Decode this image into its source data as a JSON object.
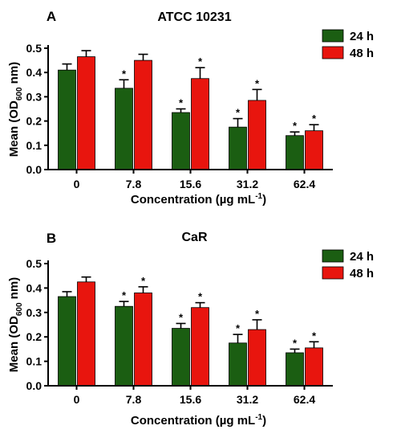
{
  "chart_data": [
    {
      "panel_letter": "A",
      "title": "ATCC 10231",
      "type": "bar",
      "categories": [
        "0",
        "7.8",
        "15.6",
        "31.2",
        "62.4"
      ],
      "series": [
        {
          "name": "24 h",
          "color": "#1b5e12",
          "values": [
            0.41,
            0.335,
            0.235,
            0.175,
            0.14
          ],
          "errors": [
            0.025,
            0.035,
            0.015,
            0.035,
            0.015
          ],
          "significant": [
            false,
            true,
            true,
            true,
            true
          ]
        },
        {
          "name": "48 h",
          "color": "#e8150e",
          "values": [
            0.465,
            0.45,
            0.375,
            0.285,
            0.16
          ],
          "errors": [
            0.025,
            0.025,
            0.045,
            0.045,
            0.025
          ],
          "significant": [
            false,
            false,
            true,
            true,
            true
          ]
        }
      ],
      "significance_marker": "*",
      "ylim": [
        0,
        0.5
      ],
      "yticks": [
        "0.0",
        "0.1",
        "0.2",
        "0.3",
        "0.4",
        "0.5"
      ],
      "ylabel": {
        "main": "Mean (OD",
        "sub": "600",
        "end": " nm)"
      },
      "xlabel": {
        "main": "Concentration (µg mL",
        "sup": "-1",
        "end": ")"
      },
      "legend_position": "top-right"
    },
    {
      "panel_letter": "B",
      "title": "CaR",
      "type": "bar",
      "categories": [
        "0",
        "7.8",
        "15.6",
        "31.2",
        "62.4"
      ],
      "series": [
        {
          "name": "24 h",
          "color": "#1b5e12",
          "values": [
            0.365,
            0.325,
            0.235,
            0.175,
            0.135
          ],
          "errors": [
            0.02,
            0.02,
            0.02,
            0.035,
            0.015
          ],
          "significant": [
            false,
            true,
            true,
            true,
            true
          ]
        },
        {
          "name": "48 h",
          "color": "#e8150e",
          "values": [
            0.425,
            0.38,
            0.32,
            0.23,
            0.155
          ],
          "errors": [
            0.02,
            0.025,
            0.02,
            0.04,
            0.025
          ],
          "significant": [
            false,
            true,
            true,
            true,
            true
          ]
        }
      ],
      "significance_marker": "*",
      "ylim": [
        0,
        0.5
      ],
      "yticks": [
        "0.0",
        "0.1",
        "0.2",
        "0.3",
        "0.4",
        "0.5"
      ],
      "ylabel": {
        "main": "Mean (OD",
        "sub": "600",
        "end": " nm)"
      },
      "xlabel": {
        "main": "Concentration (µg mL",
        "sup": "-1",
        "end": ")"
      },
      "legend_position": "top-right"
    }
  ]
}
